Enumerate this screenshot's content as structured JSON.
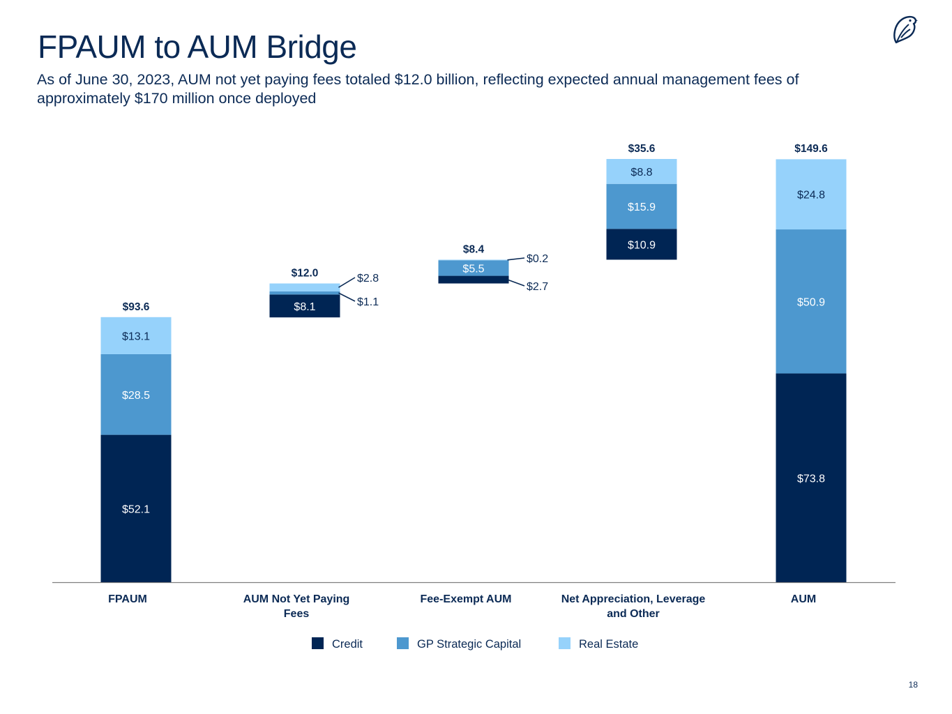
{
  "page": {
    "title": "FPAUM to AUM Bridge",
    "subtitle": "As of June 30, 2023, AUM not yet paying fees totaled $12.0 billion, reflecting expected annual management fees of approximately $170 million once deployed",
    "page_number": "18",
    "logo_icon": "bird-icon"
  },
  "colors": {
    "credit": "#002554",
    "gp_strategic_capital": "#4d98cf",
    "real_estate": "#96d2fb",
    "text": "#0b2a55",
    "axis": "#7f7f7f"
  },
  "chart_data": {
    "type": "bar",
    "subtype": "stacked-waterfall",
    "units": "$ billions",
    "categories": [
      "FPAUM",
      "AUM Not Yet Paying Fees",
      "Fee-Exempt AUM",
      "Net Appreciation, Leverage and Other",
      "AUM"
    ],
    "category_labels": [
      [
        "FPAUM"
      ],
      [
        "AUM Not Yet Paying",
        "Fees"
      ],
      [
        "Fee-Exempt AUM"
      ],
      [
        "Net Appreciation, Leverage",
        "and Other"
      ],
      [
        "AUM"
      ]
    ],
    "bases": [
      0,
      93.6,
      105.6,
      114.0,
      0
    ],
    "series": [
      {
        "name": "Credit",
        "values": [
          52.1,
          8.1,
          2.7,
          10.9,
          73.8
        ],
        "labels": [
          "$52.1",
          "$8.1",
          "$2.7",
          "$10.9",
          "$73.8"
        ]
      },
      {
        "name": "GP Strategic Capital",
        "values": [
          28.5,
          1.1,
          5.5,
          15.9,
          50.9
        ],
        "labels": [
          "$28.5",
          "$1.1",
          "$5.5",
          "$15.9",
          "$50.9"
        ]
      },
      {
        "name": "Real Estate",
        "values": [
          13.1,
          2.8,
          0.2,
          8.8,
          24.8
        ],
        "labels": [
          "$13.1",
          "$2.8",
          "$0.2",
          "$8.8",
          "$24.8"
        ]
      }
    ],
    "totals": [
      93.6,
      12.0,
      8.4,
      35.6,
      149.6
    ],
    "total_labels": [
      "$93.6",
      "$12.0",
      "$8.4",
      "$35.6",
      "$149.6"
    ],
    "ylim": [
      0,
      150
    ],
    "legend": [
      "Credit",
      "GP Strategic Capital",
      "Real Estate"
    ],
    "legend_position": "bottom-center",
    "grid": false
  }
}
